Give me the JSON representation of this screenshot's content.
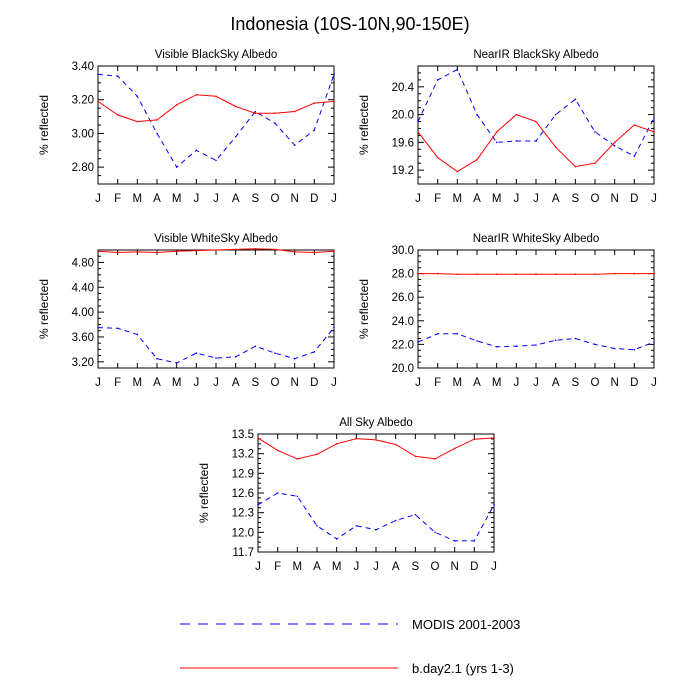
{
  "figure_title": "Indonesia (10S-10N,90-150E)",
  "legend": [
    {
      "label": "MODIS 2001-2003",
      "color": "#0000ff",
      "dash": "dashed"
    },
    {
      "label": "b.day2.1 (yrs 1-3)",
      "color": "#ff0000",
      "dash": "solid"
    }
  ],
  "chart_data": [
    {
      "type": "line",
      "title": "Visible BlackSky Albedo",
      "ylabel": "% reflected",
      "categories": [
        "J",
        "F",
        "M",
        "A",
        "M",
        "J",
        "J",
        "A",
        "S",
        "O",
        "N",
        "D",
        "J"
      ],
      "ylim": [
        2.7,
        3.4
      ],
      "yticks": [
        "2.80",
        "3.00",
        "3.20",
        "3.40"
      ],
      "series": [
        {
          "name": "MODIS 2001-2003",
          "color": "#0000ff",
          "dash": "dashed",
          "values": [
            3.35,
            3.34,
            3.22,
            3.0,
            2.8,
            2.9,
            2.84,
            2.98,
            3.13,
            3.06,
            2.93,
            3.02,
            3.35
          ]
        },
        {
          "name": "b.day2.1 (yrs 1-3)",
          "color": "#ff0000",
          "dash": "solid",
          "values": [
            3.19,
            3.11,
            3.07,
            3.08,
            3.17,
            3.23,
            3.22,
            3.16,
            3.12,
            3.12,
            3.13,
            3.18,
            3.19
          ]
        }
      ]
    },
    {
      "type": "line",
      "title": "NearIR BlackSky Albedo",
      "ylabel": "% reflected",
      "categories": [
        "J",
        "F",
        "M",
        "A",
        "M",
        "J",
        "J",
        "A",
        "S",
        "O",
        "N",
        "D",
        "J"
      ],
      "ylim": [
        19.0,
        20.7
      ],
      "yticks": [
        "19.2",
        "19.6",
        "20.0",
        "20.4"
      ],
      "series": [
        {
          "name": "MODIS 2001-2003",
          "color": "#0000ff",
          "dash": "dashed",
          "values": [
            19.9,
            20.5,
            20.65,
            20.0,
            19.6,
            19.62,
            19.62,
            20.0,
            20.22,
            19.75,
            19.55,
            19.4,
            19.95
          ]
        },
        {
          "name": "b.day2.1 (yrs 1-3)",
          "color": "#ff0000",
          "dash": "solid",
          "values": [
            19.75,
            19.38,
            19.18,
            19.35,
            19.75,
            20.0,
            19.9,
            19.53,
            19.25,
            19.3,
            19.6,
            19.85,
            19.75
          ]
        }
      ]
    },
    {
      "type": "line",
      "title": "Visible WhiteSky Albedo",
      "ylabel": "% reflected",
      "categories": [
        "J",
        "F",
        "M",
        "A",
        "M",
        "J",
        "J",
        "A",
        "S",
        "O",
        "N",
        "D",
        "J"
      ],
      "ylim": [
        3.1,
        5.0
      ],
      "yticks": [
        "3.20",
        "3.60",
        "4.00",
        "4.40",
        "4.80"
      ],
      "series": [
        {
          "name": "MODIS 2001-2003",
          "color": "#0000ff",
          "dash": "dashed",
          "values": [
            3.75,
            3.74,
            3.64,
            3.25,
            3.18,
            3.34,
            3.26,
            3.28,
            3.45,
            3.34,
            3.25,
            3.36,
            3.75
          ]
        },
        {
          "name": "b.day2.1 (yrs 1-3)",
          "color": "#ff0000",
          "dash": "solid",
          "values": [
            4.98,
            4.96,
            4.97,
            4.96,
            4.98,
            4.99,
            5.0,
            5.01,
            5.02,
            5.01,
            4.97,
            4.96,
            4.98
          ]
        }
      ]
    },
    {
      "type": "line",
      "title": "NearIR WhiteSky Albedo",
      "ylabel": "% reflected",
      "categories": [
        "J",
        "F",
        "M",
        "A",
        "M",
        "J",
        "J",
        "A",
        "S",
        "O",
        "N",
        "D",
        "J"
      ],
      "ylim": [
        20.0,
        30.0
      ],
      "yticks": [
        "20.0",
        "22.0",
        "24.0",
        "26.0",
        "28.0",
        "30.0"
      ],
      "series": [
        {
          "name": "MODIS 2001-2003",
          "color": "#0000ff",
          "dash": "dashed",
          "values": [
            22.2,
            22.9,
            22.9,
            22.3,
            21.8,
            21.85,
            21.95,
            22.35,
            22.5,
            22.0,
            21.65,
            21.55,
            22.2
          ]
        },
        {
          "name": "b.day2.1 (yrs 1-3)",
          "color": "#ff0000",
          "dash": "solid",
          "values": [
            28.0,
            28.0,
            27.95,
            27.95,
            27.95,
            27.95,
            27.95,
            27.95,
            27.95,
            27.95,
            28.0,
            28.0,
            28.0
          ]
        }
      ]
    },
    {
      "type": "line",
      "title": "All Sky Albedo",
      "ylabel": "% reflected",
      "categories": [
        "J",
        "F",
        "M",
        "A",
        "M",
        "J",
        "J",
        "A",
        "S",
        "O",
        "N",
        "D",
        "J"
      ],
      "ylim": [
        11.7,
        13.5
      ],
      "yticks": [
        "11.7",
        "12.0",
        "12.3",
        "12.6",
        "12.9",
        "13.2",
        "13.5"
      ],
      "series": [
        {
          "name": "MODIS 2001-2003",
          "color": "#0000ff",
          "dash": "dashed",
          "values": [
            12.42,
            12.6,
            12.55,
            12.1,
            11.9,
            12.1,
            12.04,
            12.18,
            12.27,
            12.0,
            11.87,
            11.87,
            12.42
          ]
        },
        {
          "name": "b.day2.1 (yrs 1-3)",
          "color": "#ff0000",
          "dash": "solid",
          "values": [
            13.44,
            13.25,
            13.12,
            13.19,
            13.35,
            13.43,
            13.41,
            13.34,
            13.16,
            13.12,
            13.28,
            13.42,
            13.44
          ]
        }
      ]
    }
  ]
}
